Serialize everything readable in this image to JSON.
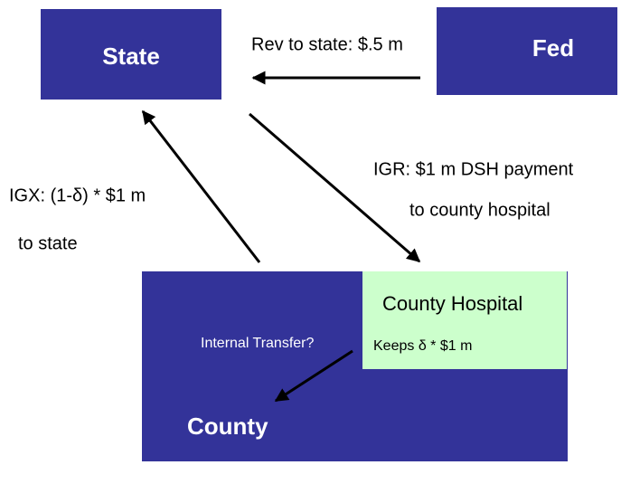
{
  "nodes": [
    {
      "label": "State"
    },
    {
      "label": "Fed"
    },
    {
      "label": "County Hospital",
      "detail": "Keeps δ * $1 m"
    },
    {
      "label": "County",
      "detail": "Internal Transfer?"
    }
  ],
  "edges": [
    {
      "lines": [
        "Rev to state: $.5 m"
      ]
    },
    {
      "lines": [
        "IGR: $1 m DSH payment",
        "to county hospital"
      ]
    },
    {
      "lines": [
        "IGX: (1-δ) * $1 m",
        "to state"
      ]
    }
  ]
}
